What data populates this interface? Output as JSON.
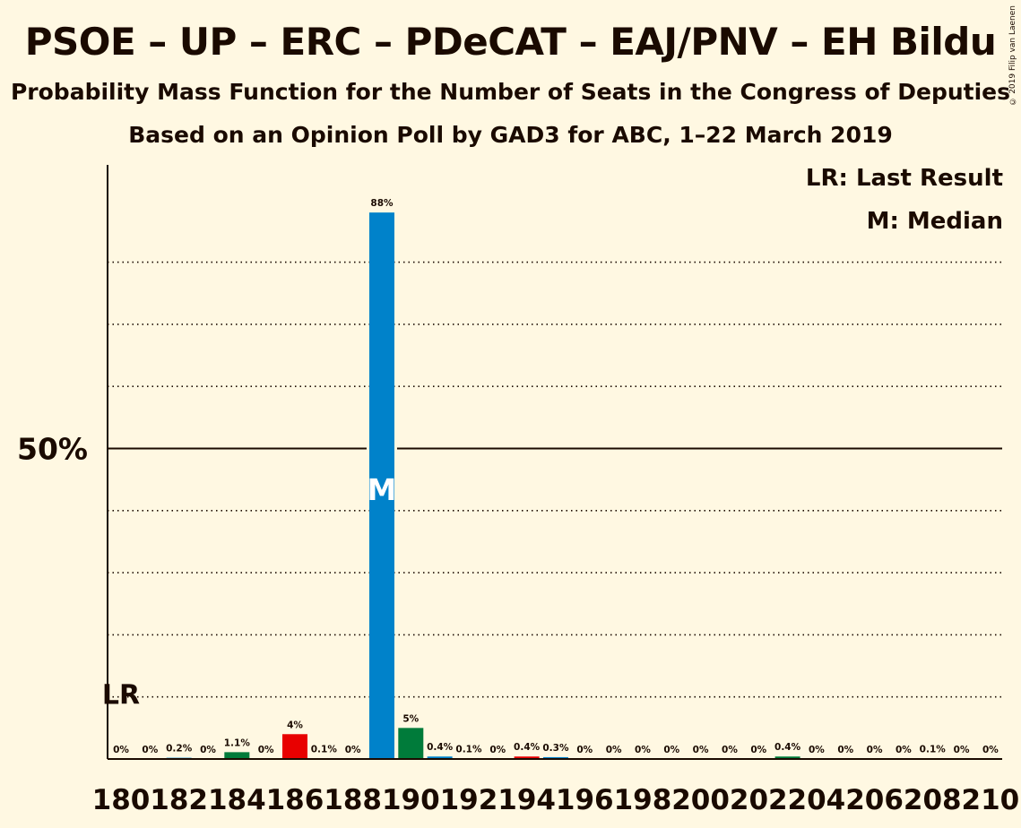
{
  "title": "PSOE – UP – ERC – PDeCAT – EAJ/PNV – EH Bildu",
  "subtitle": "Probability Mass Function for the Number of Seats in the Congress of Deputies",
  "subtitle2": "Based on an Opinion Poll by GAD3 for ABC, 1–22 March 2019",
  "copyright": "© 2019 Filip van Laenen",
  "legend": {
    "last_result": "LR: Last Result",
    "median": "M: Median"
  },
  "colors": {
    "background": "#fff8e2",
    "blue": "#0082ca",
    "green": "#007b3a",
    "red": "#e80000"
  },
  "chart_data": {
    "type": "bar",
    "x": [
      180,
      181,
      182,
      183,
      184,
      185,
      186,
      187,
      188,
      189,
      190,
      191,
      192,
      193,
      194,
      195,
      196,
      197,
      198,
      199,
      200,
      201,
      202,
      203,
      204,
      205,
      206,
      207,
      208,
      209,
      210
    ],
    "values": [
      0,
      0,
      0.2,
      0,
      1.1,
      0,
      4,
      0.1,
      0,
      88,
      5,
      0.4,
      0.1,
      0,
      0.4,
      0.3,
      0,
      0,
      0,
      0,
      0,
      0,
      0,
      0.4,
      0,
      0,
      0,
      0,
      0.1,
      0,
      0
    ],
    "labels": [
      "0%",
      "0%",
      "0.2%",
      "0%",
      "1.1%",
      "0%",
      "4%",
      "0.1%",
      "0%",
      "88%",
      "5%",
      "0.4%",
      "0.1%",
      "0%",
      "0.4%",
      "0.3%",
      "0%",
      "0%",
      "0%",
      "0%",
      "0%",
      "0%",
      "0%",
      "0.4%",
      "0%",
      "0%",
      "0%",
      "0%",
      "0.1%",
      "0%",
      "0%"
    ],
    "bar_colors": [
      "#0082ca",
      "#0082ca",
      "#0082ca",
      "#0082ca",
      "#007b3a",
      "#0082ca",
      "#e80000",
      "#0082ca",
      "#0082ca",
      "#0082ca",
      "#007b3a",
      "#0082ca",
      "#0082ca",
      "#0082ca",
      "#e80000",
      "#0082ca",
      "#0082ca",
      "#0082ca",
      "#0082ca",
      "#0082ca",
      "#0082ca",
      "#0082ca",
      "#0082ca",
      "#007b3a",
      "#0082ca",
      "#0082ca",
      "#0082ca",
      "#0082ca",
      "#0082ca",
      "#0082ca",
      "#0082ca"
    ],
    "x_tick_labels": [
      "180",
      "182",
      "184",
      "186",
      "188",
      "190",
      "192",
      "194",
      "196",
      "198",
      "200",
      "202",
      "204",
      "206",
      "208",
      "210"
    ],
    "y_tick_label": "50%",
    "ylim": [
      0,
      96
    ],
    "gridlines": [
      10,
      20,
      30,
      40,
      60,
      70,
      80
    ],
    "solid_line": 50,
    "median_seat": 189,
    "median_label": "M",
    "last_result_level": 10,
    "last_result_label": "LR"
  }
}
